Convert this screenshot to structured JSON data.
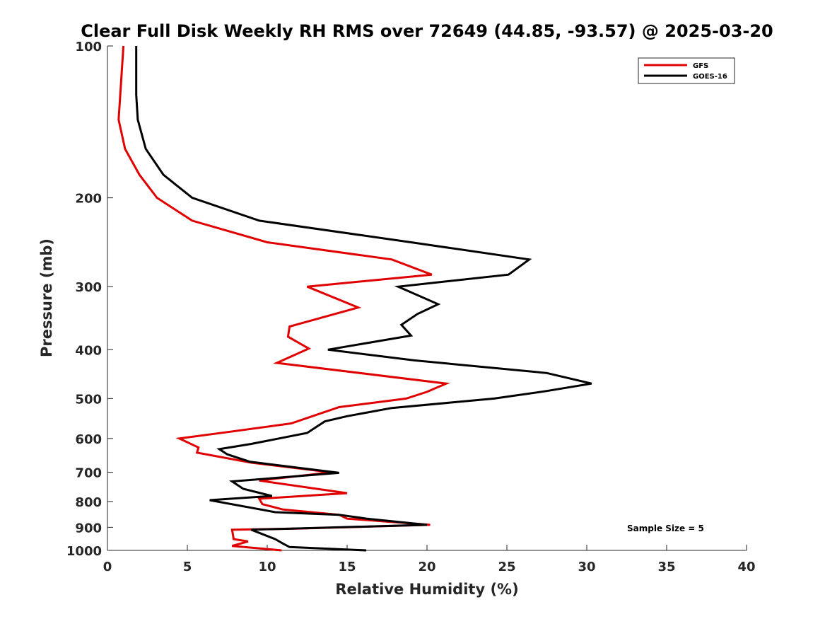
{
  "chart_data": {
    "type": "line",
    "title": "Clear Full Disk Weekly RH RMS over 72649 (44.85, -93.57) @ 2025-03-20",
    "xlabel": "Relative Humidity (%)",
    "ylabel": "Pressure (mb)",
    "xlim": [
      0,
      40
    ],
    "ylim": [
      100,
      1000
    ],
    "yscale": "log",
    "ydirection": "reverse",
    "xticks": [
      0,
      5,
      10,
      15,
      20,
      25,
      30,
      35,
      40
    ],
    "yticks": [
      100,
      200,
      300,
      400,
      500,
      600,
      700,
      800,
      900,
      1000
    ],
    "grid": false,
    "legend_position": "top-right",
    "annotation": "Sample Size = 5",
    "series": [
      {
        "name": "GFS",
        "color": "#e00000",
        "points": [
          [
            1.0,
            100
          ],
          [
            0.8,
            125
          ],
          [
            0.7,
            140
          ],
          [
            1.1,
            160
          ],
          [
            2.0,
            180
          ],
          [
            3.1,
            200
          ],
          [
            5.3,
            222
          ],
          [
            10.0,
            245
          ],
          [
            17.8,
            265
          ],
          [
            20.3,
            284
          ],
          [
            12.5,
            300
          ],
          [
            15.7,
            330
          ],
          [
            11.4,
            360
          ],
          [
            11.3,
            377
          ],
          [
            12.6,
            398
          ],
          [
            10.6,
            425
          ],
          [
            21.2,
            467
          ],
          [
            20.0,
            485
          ],
          [
            18.7,
            500
          ],
          [
            14.5,
            520
          ],
          [
            11.5,
            560
          ],
          [
            8.0,
            580
          ],
          [
            4.5,
            600
          ],
          [
            5.7,
            625
          ],
          [
            5.6,
            640
          ],
          [
            9.0,
            670
          ],
          [
            14.0,
            700
          ],
          [
            9.5,
            727
          ],
          [
            15.0,
            770
          ],
          [
            9.5,
            790
          ],
          [
            9.7,
            810
          ],
          [
            11.0,
            830
          ],
          [
            14.5,
            850
          ],
          [
            15.0,
            865
          ],
          [
            20.2,
            890
          ],
          [
            12.0,
            905
          ],
          [
            7.8,
            910
          ],
          [
            7.9,
            950
          ],
          [
            8.8,
            960
          ],
          [
            7.8,
            980
          ],
          [
            10.9,
            1000
          ]
        ]
      },
      {
        "name": "GOES-16",
        "color": "#000000",
        "points": [
          [
            1.8,
            100
          ],
          [
            1.8,
            125
          ],
          [
            1.9,
            140
          ],
          [
            2.4,
            160
          ],
          [
            3.5,
            180
          ],
          [
            5.3,
            200
          ],
          [
            9.5,
            222
          ],
          [
            19.0,
            245
          ],
          [
            26.4,
            265
          ],
          [
            25.1,
            284
          ],
          [
            18.2,
            300
          ],
          [
            20.7,
            325
          ],
          [
            19.4,
            340
          ],
          [
            18.4,
            357
          ],
          [
            19.0,
            375
          ],
          [
            13.8,
            400
          ],
          [
            19.2,
            420
          ],
          [
            27.5,
            445
          ],
          [
            30.3,
            467
          ],
          [
            27.5,
            483
          ],
          [
            24.2,
            500
          ],
          [
            17.8,
            522
          ],
          [
            15.0,
            542
          ],
          [
            13.6,
            555
          ],
          [
            12.5,
            585
          ],
          [
            9.0,
            615
          ],
          [
            7.0,
            630
          ],
          [
            7.5,
            645
          ],
          [
            8.9,
            667
          ],
          [
            14.5,
            702
          ],
          [
            7.8,
            730
          ],
          [
            8.5,
            755
          ],
          [
            10.3,
            780
          ],
          [
            6.4,
            795
          ],
          [
            10.5,
            840
          ],
          [
            14.5,
            850
          ],
          [
            16.2,
            865
          ],
          [
            20.0,
            890
          ],
          [
            9.0,
            910
          ],
          [
            10.5,
            950
          ],
          [
            11.0,
            970
          ],
          [
            11.4,
            985
          ],
          [
            16.2,
            1000
          ]
        ]
      }
    ]
  }
}
